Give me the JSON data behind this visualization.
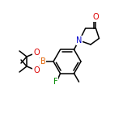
{
  "background_color": "#ffffff",
  "line_color": "#000000",
  "atom_colors": {
    "B": "#e06000",
    "O": "#dd0000",
    "N": "#0000cc",
    "F": "#008800",
    "C": "#000000"
  },
  "figsize": [
    1.52,
    1.52
  ],
  "dpi": 100,
  "lw": 1.1
}
